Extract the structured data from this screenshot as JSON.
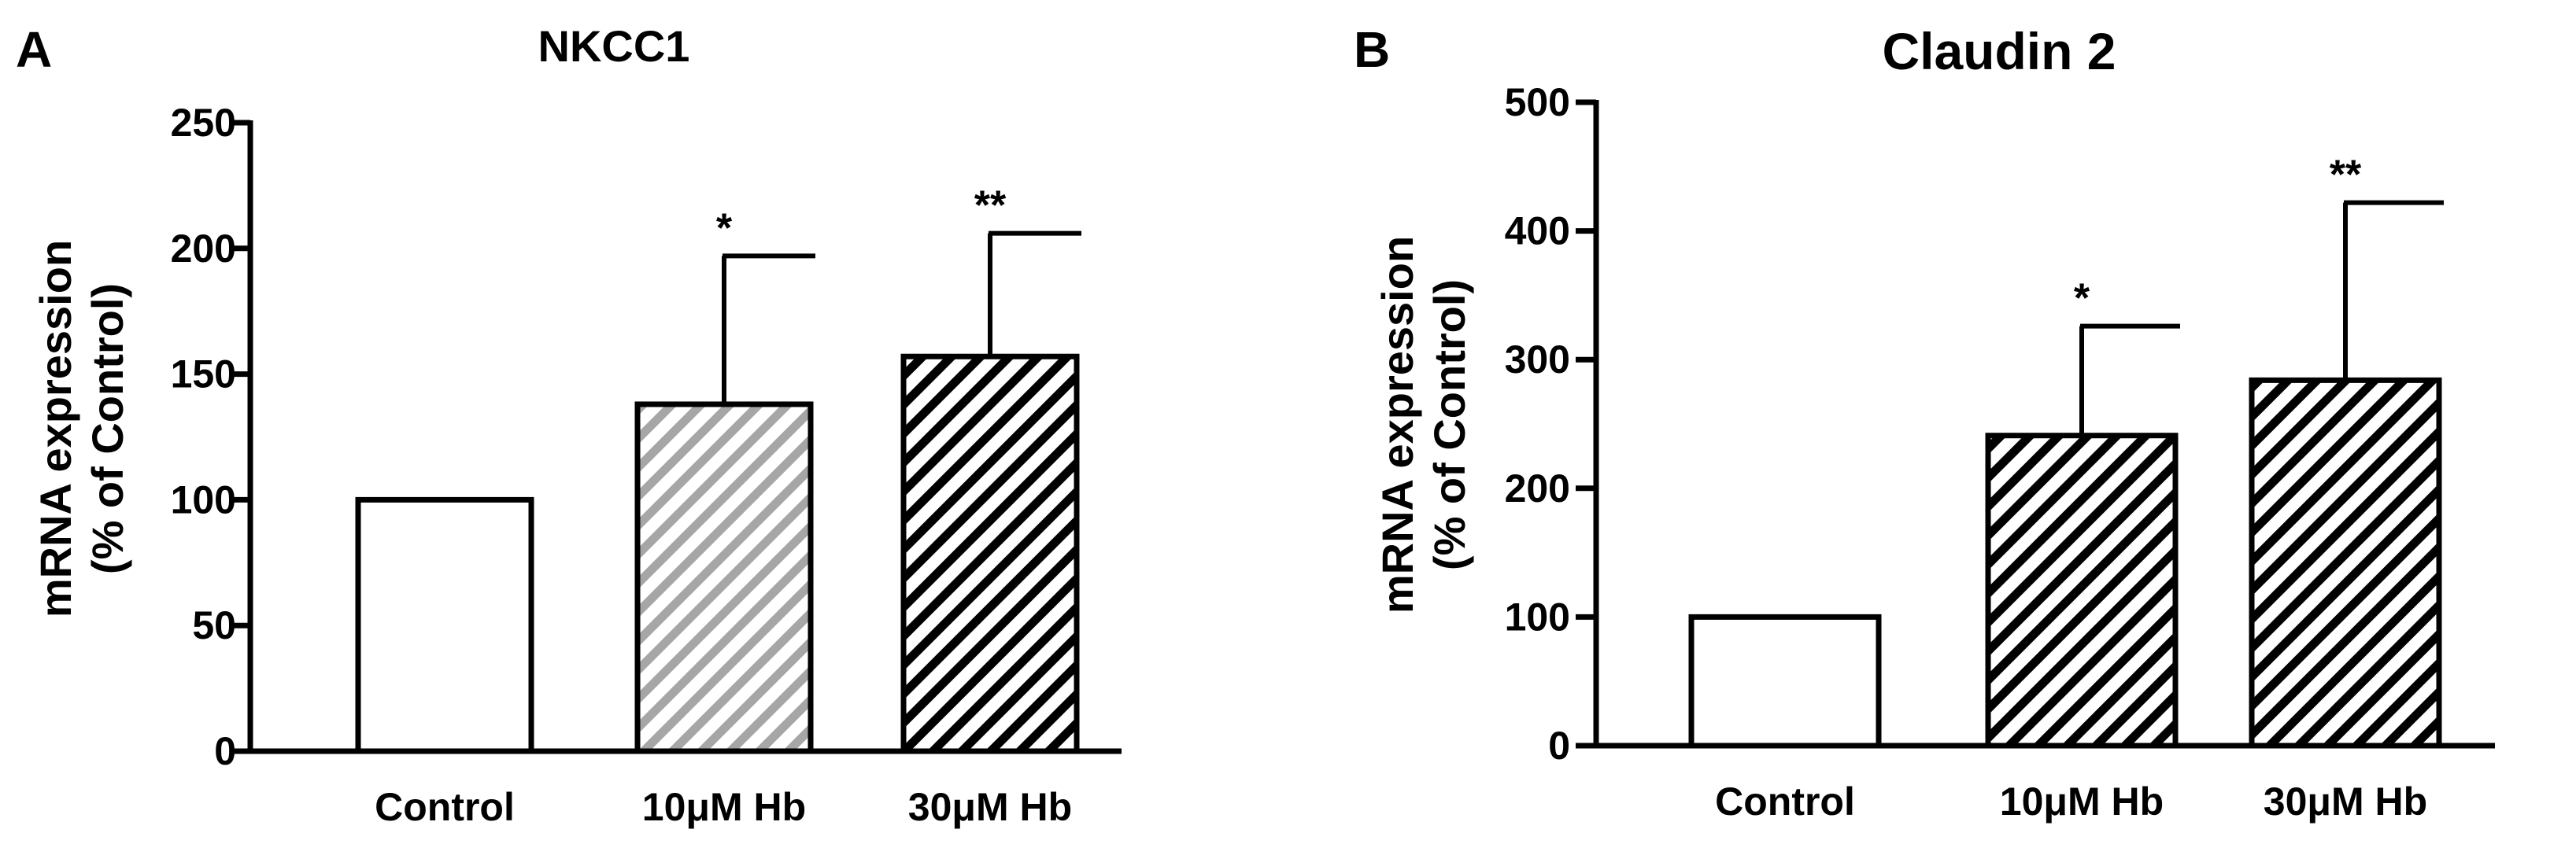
{
  "chart_data": [
    {
      "type": "bar",
      "panel": "A",
      "title": "NKCC1",
      "ylabel_lines": [
        "mRNA expression",
        "(% of Control)"
      ],
      "categories": [
        "Control",
        "10μM Hb",
        "30μM Hb"
      ],
      "values": [
        100,
        138,
        157
      ],
      "error_upper": [
        0,
        59,
        49
      ],
      "significance": [
        "",
        "*",
        "**"
      ],
      "fills": [
        "white",
        "gray-hatch",
        "black-hatch"
      ],
      "ylim": [
        0,
        250
      ],
      "yticks": [
        "0",
        "50",
        "100",
        "150",
        "200",
        "250"
      ],
      "grid": false
    },
    {
      "type": "bar",
      "panel": "B",
      "title": "Claudin 2",
      "ylabel_lines": [
        "mRNA expression",
        "(% of Control)"
      ],
      "categories": [
        "Control",
        "10μM Hb",
        "30μM Hb"
      ],
      "values": [
        100,
        241,
        284
      ],
      "error_upper": [
        0,
        85,
        138
      ],
      "significance": [
        "",
        "*",
        "**"
      ],
      "fills": [
        "white",
        "black-hatch",
        "black-hatch"
      ],
      "ylim": [
        0,
        500
      ],
      "yticks": [
        "0",
        "100",
        "200",
        "300",
        "400",
        "500"
      ],
      "grid": false
    }
  ]
}
